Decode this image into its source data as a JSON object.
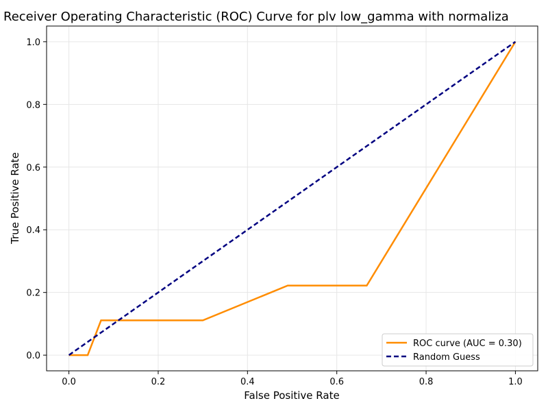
{
  "chart_data": {
    "type": "line",
    "title": "Receiver Operating Characteristic (ROC) Curve for plv low_gamma with normaliza",
    "xlabel": "False Positive Rate",
    "ylabel": "True Positive Rate",
    "xlim": [
      -0.05,
      1.05
    ],
    "ylim": [
      -0.05,
      1.05
    ],
    "xticks": [
      0.0,
      0.2,
      0.4,
      0.6,
      0.8,
      1.0
    ],
    "yticks": [
      0.0,
      0.2,
      0.4,
      0.6,
      0.8,
      1.0
    ],
    "xtick_labels": [
      "0.0",
      "0.2",
      "0.4",
      "0.6",
      "0.8",
      "1.0"
    ],
    "ytick_labels": [
      "0.0",
      "0.2",
      "0.4",
      "0.6",
      "0.8",
      "1.0"
    ],
    "grid": true,
    "legend_position": "lower-right",
    "series": [
      {
        "name": "ROC curve (AUC = 0.30)",
        "color": "#ff8c00",
        "style": "solid",
        "x": [
          0.0,
          0.042,
          0.072,
          0.3,
          0.49,
          0.667,
          1.0
        ],
        "y": [
          0.0,
          0.0,
          0.111,
          0.111,
          0.222,
          0.222,
          1.0
        ]
      },
      {
        "name": "Random Guess",
        "color": "#000080",
        "style": "dashed",
        "x": [
          0.0,
          1.0
        ],
        "y": [
          0.0,
          1.0
        ]
      }
    ]
  }
}
